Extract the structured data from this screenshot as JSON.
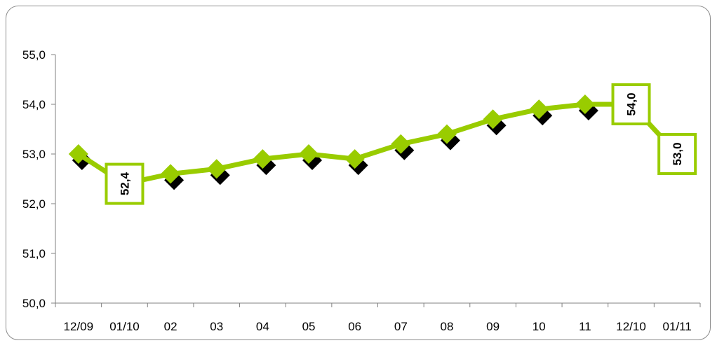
{
  "chart_data": {
    "type": "line",
    "categories": [
      "12/09",
      "01/10",
      "02",
      "03",
      "04",
      "05",
      "06",
      "07",
      "08",
      "09",
      "10",
      "11",
      "12/10",
      "01/11"
    ],
    "series": [
      {
        "values": [
          53.0,
          52.4,
          52.6,
          52.7,
          52.9,
          53.0,
          52.9,
          53.2,
          53.4,
          53.7,
          53.9,
          54.0,
          54.0,
          53.0
        ]
      }
    ],
    "data_labels": [
      {
        "index": 1,
        "text": "52,4"
      },
      {
        "index": 12,
        "text": "54,0"
      },
      {
        "index": 13,
        "text": "53,0"
      }
    ],
    "y_ticks": [
      "50,0",
      "51,0",
      "52,0",
      "53,0",
      "54,0",
      "55,0"
    ],
    "ylim": [
      50,
      55
    ],
    "title": "",
    "xlabel": "",
    "ylabel": "",
    "grid": false,
    "legend": "none",
    "colors": {
      "line": "#99cc00",
      "marker_shadow": "#000000",
      "axis": "#808080",
      "label_border": "#99cc00"
    }
  }
}
